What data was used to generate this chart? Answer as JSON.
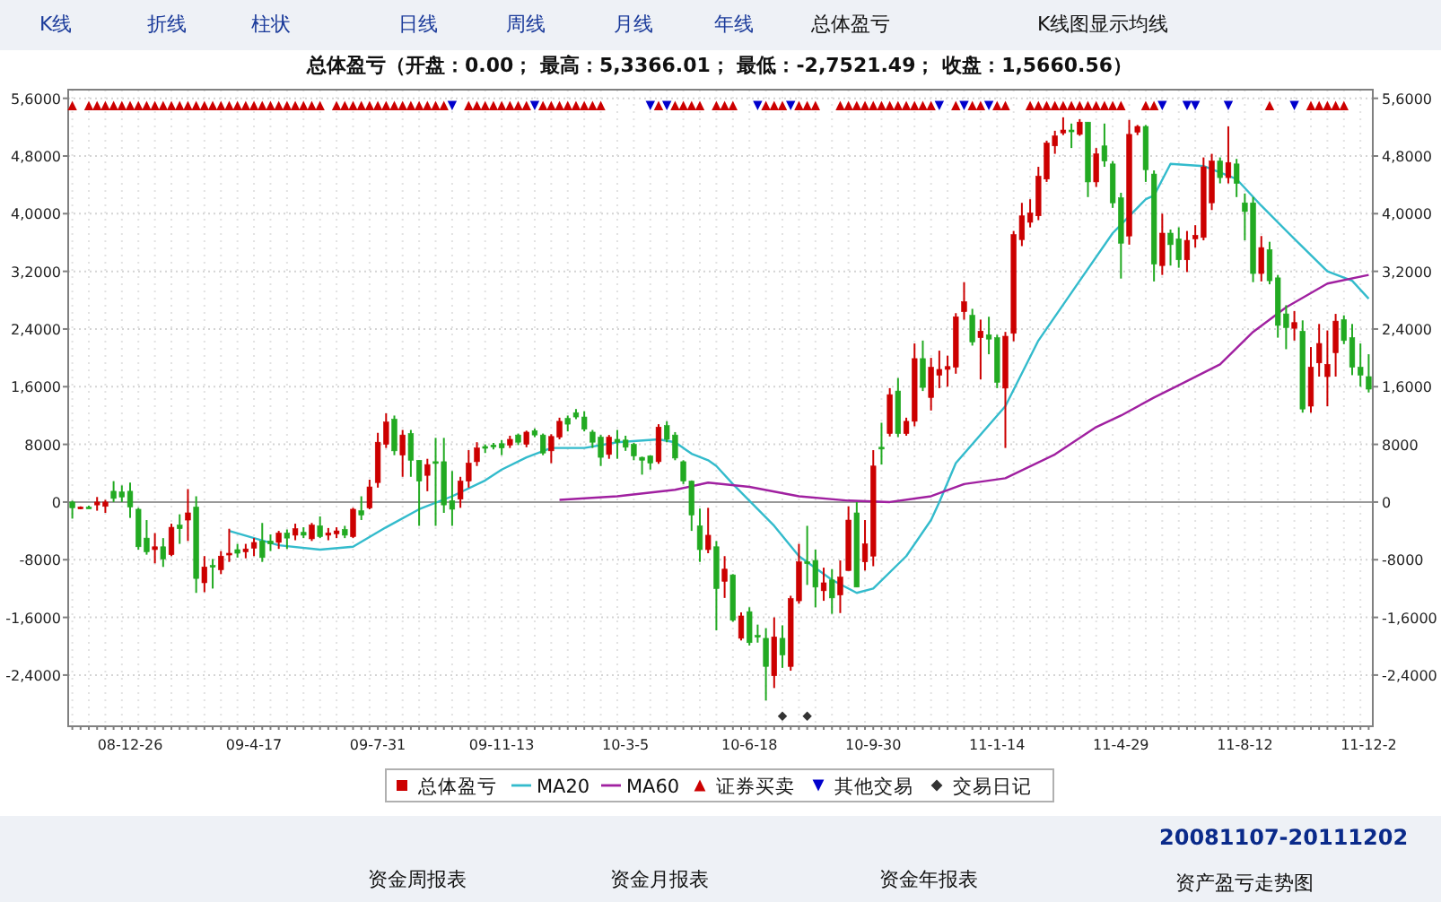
{
  "chart_data": {
    "type": "candlestick",
    "title": "总体盈亏（开盘：0.00；  最高：5,3366.01；  最低：-2,7521.49；  收盘：1,5660.56）",
    "categories": [
      null,
      null,
      null,
      null,
      null,
      null,
      null,
      "08-12-26",
      null,
      null,
      null,
      null,
      null,
      null,
      null,
      null,
      null,
      null,
      null,
      null,
      null,
      null,
      "09-4-17",
      null,
      null,
      null,
      null,
      null,
      null,
      null,
      null,
      null,
      null,
      null,
      null,
      null,
      null,
      "09-7-31",
      null,
      null,
      null,
      null,
      null,
      null,
      null,
      null,
      null,
      null,
      null,
      null,
      null,
      null,
      "09-11-13",
      null,
      null,
      null,
      null,
      null,
      null,
      null,
      null,
      null,
      null,
      null,
      null,
      null,
      null,
      "10-3-5",
      null,
      null,
      null,
      null,
      null,
      null,
      null,
      null,
      null,
      null,
      null,
      null,
      null,
      null,
      "10-6-18",
      null,
      null,
      null,
      null,
      null,
      null,
      null,
      null,
      null,
      null,
      null,
      null,
      null,
      null,
      "10-9-30",
      null,
      null,
      null,
      null,
      null,
      null,
      null,
      null,
      null,
      null,
      null,
      null,
      null,
      null,
      "11-1-14",
      null,
      null,
      null,
      null,
      null,
      null,
      null,
      null,
      null,
      null,
      null,
      null,
      null,
      null,
      "11-4-29",
      null,
      null,
      null,
      null,
      null,
      null,
      null,
      null,
      null,
      null,
      null,
      null,
      null,
      null,
      "11-8-12",
      null,
      null,
      null,
      null,
      null,
      null,
      null,
      null,
      null,
      null,
      null,
      null,
      null,
      null,
      "11-12-2"
    ],
    "series": [
      {
        "name": "总体盈亏",
        "type": "candlestick",
        "color": "#cc0000",
        "ohlc": [
          [
            0,
            200,
            -2300,
            -800
          ],
          [
            -800,
            -600,
            -1000,
            -700
          ],
          [
            -700,
            -500,
            -900,
            -800
          ],
          [
            -400,
            700,
            -1200,
            0
          ],
          [
            -600,
            300,
            -1500,
            0
          ],
          [
            1500,
            2900,
            0,
            500
          ],
          [
            1400,
            2300,
            0,
            700
          ],
          [
            1500,
            2700,
            -2200,
            -700
          ],
          [
            -1000,
            -800,
            -6600,
            -6200
          ],
          [
            -5000,
            -2500,
            -7300,
            -6900
          ],
          [
            -6600,
            -4300,
            -8500,
            -6200
          ],
          [
            -6200,
            -5000,
            -9000,
            -7900
          ],
          [
            -7300,
            -3000,
            -7500,
            -3500
          ],
          [
            -3200,
            -1700,
            -5800,
            -3700
          ],
          [
            -2500,
            1800,
            -5400,
            -1500
          ],
          [
            -700,
            800,
            -12600,
            -10600
          ],
          [
            -11200,
            -7500,
            -12500,
            -9000
          ],
          [
            -8800,
            -7900,
            -12000,
            -9000
          ],
          [
            -9400,
            -6800,
            -10000,
            -7500
          ],
          [
            -7300,
            -3700,
            -8300,
            -7100
          ],
          [
            -6600,
            -5800,
            -7700,
            -7100
          ],
          [
            -6900,
            -5800,
            -7800,
            -6500
          ],
          [
            -6400,
            -5000,
            -7500,
            -5600
          ],
          [
            -5400,
            -2900,
            -8300,
            -7700
          ],
          [
            -5400,
            -4500,
            -6800,
            -5800
          ],
          [
            -5600,
            -4000,
            -6500,
            -4300
          ],
          [
            -4300,
            -3800,
            -6500,
            -5000
          ],
          [
            -4600,
            -3000,
            -5300,
            -3700
          ],
          [
            -4200,
            -3500,
            -5000,
            -4600
          ],
          [
            -5100,
            -2900,
            -5400,
            -3200
          ],
          [
            -3300,
            -2000,
            -5000,
            -4800
          ],
          [
            -4600,
            -3600,
            -5300,
            -4300
          ],
          [
            -4400,
            -3500,
            -5000,
            -4000
          ],
          [
            -3800,
            -3300,
            -5000,
            -4600
          ],
          [
            -4800,
            -800,
            -5000,
            -1000
          ],
          [
            -1200,
            800,
            -2500,
            -1800
          ],
          [
            -800,
            3100,
            -1000,
            2100
          ],
          [
            2700,
            9600,
            2000,
            8300
          ],
          [
            8000,
            12300,
            7500,
            11100
          ],
          [
            11500,
            12000,
            6500,
            7100
          ],
          [
            6500,
            10000,
            3500,
            9300
          ],
          [
            9500,
            10000,
            3500,
            5800
          ],
          [
            5800,
            5800,
            -3300,
            2900
          ],
          [
            3700,
            6000,
            1500,
            5200
          ],
          [
            5600,
            8900,
            -3300,
            5400
          ],
          [
            5600,
            8900,
            -1500,
            -400
          ],
          [
            200,
            4300,
            -3300,
            -1000
          ],
          [
            400,
            3500,
            -800,
            2900
          ],
          [
            2900,
            7200,
            2000,
            5400
          ],
          [
            5600,
            8300,
            5000,
            7500
          ],
          [
            7700,
            8000,
            6800,
            7500
          ],
          [
            7900,
            8200,
            7300,
            7800
          ],
          [
            8100,
            8600,
            6500,
            7500
          ],
          [
            7900,
            9200,
            7500,
            8700
          ],
          [
            9300,
            9500,
            7900,
            8300
          ],
          [
            8000,
            9900,
            7600,
            9700
          ],
          [
            9900,
            10200,
            9000,
            9300
          ],
          [
            9300,
            9500,
            6500,
            6800
          ],
          [
            7100,
            9400,
            5400,
            9100
          ],
          [
            9000,
            11700,
            8700,
            11200
          ],
          [
            11600,
            12000,
            9800,
            10800
          ],
          [
            12400,
            12900,
            11500,
            11800
          ],
          [
            11800,
            12600,
            9800,
            10100
          ],
          [
            9700,
            10000,
            7500,
            8300
          ],
          [
            9000,
            9300,
            5000,
            6200
          ],
          [
            6600,
            9300,
            6000,
            9000
          ],
          [
            8700,
            10000,
            6000,
            8300
          ],
          [
            8600,
            9200,
            7100,
            7600
          ],
          [
            8000,
            8200,
            5800,
            6400
          ],
          [
            6200,
            6300,
            3800,
            5800
          ],
          [
            6400,
            6500,
            4500,
            5400
          ],
          [
            5600,
            10800,
            5300,
            10400
          ],
          [
            10600,
            11200,
            8300,
            8700
          ],
          [
            9300,
            9700,
            5800,
            6100
          ],
          [
            5600,
            5800,
            2500,
            2900
          ],
          [
            2900,
            3000,
            -4000,
            -1800
          ],
          [
            -3300,
            -900,
            -8300,
            -6600
          ],
          [
            -6600,
            -800,
            -7100,
            -4600
          ],
          [
            -6200,
            -5400,
            -17800,
            -12000
          ],
          [
            -11000,
            -7500,
            -13300,
            -9300
          ],
          [
            -10100,
            -10000,
            -16600,
            -16400
          ],
          [
            -18900,
            -15300,
            -19200,
            -15800
          ],
          [
            -15200,
            -14600,
            -19900,
            -19500
          ],
          [
            -18500,
            -17000,
            -19500,
            -18700
          ],
          [
            -18900,
            -17500,
            -27521.49,
            -22800
          ],
          [
            -24100,
            -16000,
            -25800,
            -18700
          ],
          [
            -18900,
            -17100,
            -23000,
            -21200
          ],
          [
            -22800,
            -13000,
            -23400,
            -13400
          ],
          [
            -13700,
            -5800,
            -14100,
            -8300
          ],
          [
            -8300,
            -3300,
            -11500,
            -8500
          ],
          [
            -8100,
            -6600,
            -14600,
            -11800
          ],
          [
            -12300,
            -9100,
            -13700,
            -11200
          ],
          [
            -10800,
            -9300,
            -15500,
            -13300
          ],
          [
            -12900,
            -8100,
            -15400,
            -10400
          ],
          [
            -9500,
            -600,
            -9500,
            -2500
          ],
          [
            -1500,
            0,
            -11800,
            -11800
          ],
          [
            -8300,
            -2500,
            -9500,
            -5800
          ],
          [
            -7500,
            7200,
            -8900,
            5000
          ],
          [
            7600,
            11000,
            5200,
            7500
          ],
          [
            9500,
            15800,
            9100,
            14900
          ],
          [
            15400,
            17200,
            9000,
            9500
          ],
          [
            9500,
            11700,
            9200,
            11200
          ],
          [
            11200,
            22000,
            10500,
            19900
          ],
          [
            19900,
            22400,
            15400,
            15900
          ],
          [
            14500,
            20000,
            12700,
            18700
          ],
          [
            17600,
            21000,
            15800,
            18400
          ],
          [
            18400,
            20300,
            16000,
            18800
          ],
          [
            18700,
            26200,
            17800,
            25700
          ],
          [
            26400,
            30500,
            25300,
            27800
          ],
          [
            25900,
            26800,
            21700,
            22200
          ],
          [
            22800,
            25300,
            17000,
            23700
          ],
          [
            23200,
            25700,
            20500,
            22600
          ],
          [
            22800,
            23200,
            15800,
            16600
          ],
          [
            15800,
            23600,
            7500,
            23000
          ],
          [
            23400,
            37600,
            22300,
            37100
          ],
          [
            36400,
            41500,
            35500,
            39700
          ],
          [
            38800,
            42000,
            38100,
            40100
          ],
          [
            39700,
            46500,
            39100,
            45200
          ],
          [
            44800,
            50100,
            44400,
            49800
          ],
          [
            49400,
            51500,
            48300,
            50800
          ],
          [
            51200,
            53366.01,
            50900,
            51600
          ],
          [
            51600,
            52500,
            49100,
            51400
          ],
          [
            51000,
            53100,
            50800,
            52700
          ],
          [
            52700,
            52700,
            42300,
            44400
          ],
          [
            44400,
            49100,
            43700,
            48300
          ],
          [
            49400,
            52500,
            46500,
            47300
          ],
          [
            46900,
            47300,
            40800,
            41500
          ],
          [
            42200,
            42900,
            31000,
            35900
          ],
          [
            36900,
            53000,
            35700,
            51000
          ],
          [
            51300,
            52300,
            50900,
            52100
          ],
          [
            52100,
            52300,
            44400,
            46100
          ],
          [
            45500,
            46000,
            30600,
            33000
          ],
          [
            32800,
            40000,
            31500,
            37300
          ],
          [
            37300,
            37800,
            32800,
            35700
          ],
          [
            36500,
            38100,
            32500,
            33600
          ],
          [
            33600,
            37600,
            31900,
            36300
          ],
          [
            36500,
            38400,
            35300,
            37000
          ],
          [
            36700,
            47800,
            36300,
            46500
          ],
          [
            41500,
            48300,
            40500,
            47300
          ],
          [
            47300,
            47800,
            44200,
            45000
          ],
          [
            45000,
            52100,
            44200,
            47100
          ],
          [
            46900,
            47600,
            42300,
            44200
          ],
          [
            41500,
            42800,
            36300,
            40300
          ],
          [
            41500,
            42300,
            30500,
            31700
          ],
          [
            31700,
            36900,
            30600,
            35300
          ],
          [
            35000,
            36100,
            30200,
            30700
          ],
          [
            31100,
            31500,
            22800,
            24500
          ],
          [
            26100,
            27300,
            21200,
            24200
          ],
          [
            24100,
            26500,
            22400,
            24900
          ],
          [
            23700,
            25200,
            12400,
            12900
          ],
          [
            13300,
            21500,
            12400,
            18700
          ],
          [
            19300,
            24700,
            17400,
            22000
          ],
          [
            17400,
            23800,
            13300,
            19100
          ],
          [
            20700,
            26100,
            17400,
            25100
          ],
          [
            25300,
            25900,
            21900,
            22400
          ],
          [
            22800,
            24700,
            17600,
            18700
          ],
          [
            18700,
            22000,
            16000,
            17600
          ],
          [
            17400,
            20500,
            15200,
            15660.56
          ]
        ],
        "colors": [
          "#22aa22",
          "#cc0000",
          "#22aa22",
          "#cc0000",
          "#cc0000",
          "#22aa22",
          "#22aa22",
          "#22aa22",
          "#22aa22",
          "#22aa22",
          "#cc0000",
          "#22aa22",
          "#cc0000",
          "#22aa22",
          "#cc0000",
          "#22aa22",
          "#cc0000",
          "#22aa22",
          "#cc0000",
          "#cc0000",
          "#22aa22",
          "#cc0000",
          "#cc0000",
          "#22aa22",
          "#22aa22",
          "#cc0000",
          "#22aa22",
          "#cc0000",
          "#22aa22",
          "#cc0000",
          "#22aa22",
          "#cc0000",
          "#cc0000",
          "#22aa22",
          "#cc0000",
          "#22aa22",
          "#cc0000",
          "#cc0000",
          "#cc0000",
          "#22aa22",
          "#cc0000",
          "#22aa22",
          "#22aa22",
          "#cc0000",
          "#22aa22",
          "#22aa22",
          "#22aa22",
          "#cc0000",
          "#cc0000",
          "#cc0000",
          "#22aa22",
          "#22aa22",
          "#22aa22",
          "#cc0000",
          "#22aa22",
          "#cc0000",
          "#22aa22",
          "#22aa22",
          "#cc0000",
          "#cc0000",
          "#22aa22",
          "#22aa22",
          "#22aa22",
          "#22aa22",
          "#22aa22",
          "#cc0000",
          "#22aa22",
          "#22aa22",
          "#22aa22",
          "#22aa22",
          "#22aa22",
          "#cc0000",
          "#22aa22",
          "#22aa22",
          "#22aa22",
          "#22aa22",
          "#22aa22",
          "#cc0000",
          "#22aa22",
          "#cc0000",
          "#22aa22",
          "#cc0000",
          "#22aa22",
          "#22aa22",
          "#22aa22",
          "#cc0000",
          "#22aa22",
          "#cc0000",
          "#cc0000",
          "#22aa22",
          "#22aa22",
          "#cc0000",
          "#22aa22",
          "#cc0000",
          "#cc0000",
          "#22aa22",
          "#cc0000",
          "#cc0000",
          "#22aa22",
          "#cc0000",
          "#22aa22",
          "#cc0000",
          "#cc0000",
          "#22aa22",
          "#cc0000",
          "#cc0000",
          "#cc0000",
          "#cc0000",
          "#cc0000",
          "#22aa22",
          "#cc0000",
          "#22aa22",
          "#22aa22",
          "#cc0000",
          "#cc0000",
          "#cc0000",
          "#cc0000",
          "#cc0000",
          "#cc0000",
          "#cc0000",
          "#cc0000",
          "#22aa22",
          "#cc0000",
          "#22aa22",
          "#cc0000",
          "#22aa22",
          "#22aa22",
          "#22aa22",
          "#cc0000",
          "#cc0000",
          "#22aa22",
          "#22aa22",
          "#cc0000",
          "#22aa22",
          "#22aa22",
          "#cc0000",
          "#cc0000",
          "#cc0000",
          "#cc0000",
          "#22aa22",
          "#cc0000",
          "#22aa22",
          "#22aa22",
          "#22aa22",
          "#cc0000",
          "#22aa22",
          "#22aa22",
          "#22aa22",
          "#cc0000",
          "#22aa22",
          "#cc0000",
          "#cc0000",
          "#cc0000",
          "#cc0000",
          "#22aa22",
          "#22aa22",
          "#22aa22",
          "#22aa22"
        ]
      },
      {
        "name": "MA20",
        "type": "line",
        "color": "#33bbcc",
        "values": [
          null,
          null,
          null,
          null,
          null,
          null,
          null,
          null,
          null,
          null,
          null,
          null,
          null,
          null,
          null,
          null,
          null,
          null,
          null,
          -4000,
          null,
          null,
          null,
          null,
          null,
          -6000,
          null,
          null,
          null,
          null,
          -6600,
          null,
          null,
          null,
          -6200,
          null,
          null,
          null,
          -3500,
          null,
          null,
          null,
          -1000,
          null,
          null,
          null,
          800,
          null,
          null,
          null,
          3000,
          null,
          4500,
          null,
          null,
          6200,
          null,
          null,
          7500,
          null,
          null,
          null,
          7500,
          null,
          null,
          null,
          8300,
          null,
          null,
          null,
          null,
          8700,
          null,
          8300,
          null,
          6700,
          null,
          5800,
          5000,
          null,
          2500,
          null,
          null,
          null,
          null,
          -3300,
          null,
          null,
          -7500,
          null,
          null,
          null,
          -10800,
          null,
          null,
          -12600,
          null,
          -12000,
          null,
          null,
          null,
          -7500,
          null,
          null,
          -2500,
          0,
          null,
          5400,
          null,
          null,
          null,
          null,
          null,
          13300,
          null,
          null,
          null,
          22400,
          null,
          null,
          null,
          null,
          30700,
          null,
          null,
          null,
          37300,
          null,
          null,
          null,
          42000,
          42500,
          null,
          46900,
          null,
          null,
          null,
          46600,
          null,
          null,
          null,
          44800,
          null,
          null,
          41100,
          null,
          null,
          null,
          36500,
          null,
          null,
          null,
          32000,
          null,
          null,
          30700,
          null,
          28200
        ]
      },
      {
        "name": "MA60",
        "type": "line",
        "color": "#a020a0",
        "values": [
          null,
          null,
          null,
          null,
          null,
          null,
          null,
          null,
          null,
          null,
          null,
          null,
          null,
          null,
          null,
          null,
          null,
          null,
          null,
          null,
          null,
          null,
          null,
          null,
          null,
          null,
          null,
          null,
          null,
          null,
          null,
          null,
          null,
          null,
          null,
          null,
          null,
          null,
          null,
          null,
          null,
          null,
          null,
          null,
          null,
          null,
          null,
          null,
          null,
          null,
          null,
          null,
          null,
          null,
          null,
          null,
          null,
          null,
          null,
          300,
          null,
          null,
          null,
          null,
          null,
          null,
          800,
          null,
          null,
          null,
          null,
          null,
          null,
          1700,
          null,
          null,
          null,
          2700,
          null,
          null,
          null,
          null,
          2100,
          null,
          null,
          null,
          null,
          null,
          800,
          null,
          null,
          null,
          null,
          null,
          200,
          null,
          null,
          null,
          null,
          0,
          null,
          null,
          null,
          null,
          800,
          null,
          null,
          null,
          2500,
          null,
          null,
          null,
          null,
          3300,
          null,
          null,
          null,
          null,
          null,
          6600,
          null,
          null,
          null,
          null,
          10400,
          null,
          null,
          12000,
          null,
          null,
          null,
          14500,
          null,
          null,
          16200,
          null,
          null,
          null,
          null,
          19100,
          null,
          null,
          null,
          23600,
          null,
          null,
          null,
          27000,
          null,
          null,
          null,
          null,
          30300,
          null,
          null,
          null,
          null,
          31500
        ]
      },
      {
        "name": "证券买卖",
        "type": "scatter",
        "marker": "triangle",
        "color": "#cc0000",
        "values": [
          55000,
          null,
          55000,
          55000,
          55000,
          55000,
          55000,
          55000,
          55000,
          55000,
          55000,
          55000,
          55000,
          55000,
          55000,
          55000,
          55000,
          55000,
          55000,
          55000,
          55000,
          55000,
          55000,
          55000,
          55000,
          55000,
          55000,
          55000,
          55000,
          55000,
          55000,
          null,
          55000,
          55000,
          55000,
          55000,
          55000,
          55000,
          55000,
          55000,
          55000,
          55000,
          55000,
          55000,
          55000,
          55000,
          null,
          null,
          55000,
          55000,
          55000,
          55000,
          55000,
          55000,
          55000,
          55000,
          null,
          55000,
          55000,
          55000,
          55000,
          55000,
          55000,
          55000,
          55000,
          null,
          null,
          null,
          null,
          null,
          null,
          55000,
          null,
          55000,
          55000,
          55000,
          55000,
          null,
          55000,
          55000,
          55000,
          null,
          null,
          null,
          55000,
          55000,
          55000,
          null,
          55000,
          55000,
          55000,
          null,
          null,
          55000,
          55000,
          55000,
          55000,
          55000,
          55000,
          55000,
          55000,
          55000,
          55000,
          55000,
          55000,
          null,
          null,
          55000,
          null,
          55000,
          55000,
          null,
          55000,
          55000,
          null,
          null,
          55000,
          55000,
          55000,
          55000,
          55000,
          55000,
          55000,
          55000,
          55000,
          55000,
          55000,
          55000,
          null,
          null,
          55000,
          55000,
          null,
          null,
          null,
          null,
          null,
          null,
          null,
          null,
          null,
          null,
          null,
          null,
          null,
          55000,
          null,
          null,
          null,
          null,
          55000,
          55000,
          55000,
          55000,
          55000,
          null,
          null,
          null
        ]
      },
      {
        "name": "其他交易",
        "type": "scatter",
        "marker": "triangle-down",
        "color": "#0000cc",
        "values": [
          null,
          null,
          null,
          null,
          null,
          null,
          null,
          null,
          null,
          null,
          null,
          null,
          null,
          null,
          null,
          null,
          null,
          null,
          null,
          null,
          null,
          null,
          null,
          null,
          null,
          null,
          null,
          null,
          null,
          null,
          null,
          null,
          null,
          null,
          null,
          null,
          null,
          null,
          null,
          null,
          null,
          null,
          null,
          null,
          null,
          null,
          55000,
          null,
          null,
          null,
          null,
          null,
          null,
          null,
          null,
          null,
          55000,
          null,
          null,
          null,
          null,
          null,
          null,
          null,
          null,
          null,
          null,
          null,
          null,
          null,
          55000,
          null,
          55000,
          null,
          null,
          null,
          null,
          null,
          null,
          null,
          null,
          null,
          null,
          55000,
          null,
          null,
          null,
          55000,
          null,
          null,
          null,
          null,
          null,
          null,
          null,
          null,
          null,
          null,
          null,
          null,
          null,
          null,
          null,
          null,
          null,
          55000,
          null,
          null,
          55000,
          null,
          null,
          55000,
          null,
          null,
          null,
          null,
          null,
          null,
          null,
          null,
          null,
          null,
          null,
          null,
          null,
          null,
          null,
          null,
          null,
          null,
          null,
          null,
          55000,
          null,
          null,
          55000,
          55000,
          null,
          null,
          null,
          55000,
          null,
          null,
          null,
          null,
          null,
          null,
          null,
          55000,
          null,
          null,
          null,
          null,
          null,
          null,
          null,
          null,
          null
        ]
      },
      {
        "name": "交易日记",
        "type": "scatter",
        "marker": "diamond",
        "color": "#333333",
        "values": [
          null,
          null,
          null,
          null,
          null,
          null,
          null,
          null,
          null,
          null,
          null,
          null,
          null,
          null,
          null,
          null,
          null,
          null,
          null,
          null,
          null,
          null,
          null,
          null,
          null,
          null,
          null,
          null,
          null,
          null,
          null,
          null,
          null,
          null,
          null,
          null,
          null,
          null,
          null,
          null,
          null,
          null,
          null,
          null,
          null,
          null,
          null,
          null,
          null,
          null,
          null,
          null,
          null,
          null,
          null,
          null,
          null,
          null,
          null,
          null,
          null,
          null,
          null,
          null,
          null,
          null,
          null,
          null,
          null,
          null,
          null,
          null,
          null,
          null,
          null,
          null,
          null,
          null,
          null,
          null,
          null,
          null,
          null,
          null,
          null,
          null,
          -29700,
          null,
          null,
          -29700,
          null,
          null,
          null,
          null,
          null,
          null,
          null,
          null,
          null,
          null,
          null,
          null,
          null,
          null,
          null,
          null,
          null,
          null,
          null,
          null,
          null,
          null,
          null,
          null,
          null,
          null,
          null,
          null,
          null,
          null,
          null,
          null,
          null,
          null,
          null,
          null,
          null,
          null,
          null,
          null,
          null,
          null,
          null,
          null,
          null,
          null,
          null,
          null,
          null,
          null,
          null,
          null,
          null,
          null,
          null,
          null,
          null,
          null,
          null,
          null,
          null,
          null,
          null,
          null,
          null,
          null,
          null,
          null
        ]
      }
    ],
    "ylim": [
      -31100,
      57200
    ],
    "yticks": [
      {
        "value": 56000,
        "label": "5,6000"
      },
      {
        "value": 48000,
        "label": "4,8000"
      },
      {
        "value": 40000,
        "label": "4,0000"
      },
      {
        "value": 32000,
        "label": "3,2000"
      },
      {
        "value": 24000,
        "label": "2,4000"
      },
      {
        "value": 16000,
        "label": "1,6000"
      },
      8000,
      0,
      -8000,
      {
        "value": -16000,
        "label": "-1,6000"
      },
      {
        "value": -24000,
        "label": "-2,4000"
      }
    ],
    "y2lim": [
      -31100,
      57200
    ],
    "y2ticks": [
      {
        "value": 56000,
        "label": "5,6000"
      },
      {
        "value": 48000,
        "label": "4,8000"
      },
      {
        "value": 40000,
        "label": "4,0000"
      },
      {
        "value": 32000,
        "label": "3,2000"
      },
      {
        "value": 24000,
        "label": "2,4000"
      },
      {
        "value": 16000,
        "label": "1,6000"
      },
      8000,
      0,
      -8000,
      {
        "value": -16000,
        "label": "-1,6000"
      },
      {
        "value": -24000,
        "label": "-2,4000"
      }
    ],
    "ref_lines": [
      {
        "axis": "y",
        "value": 0,
        "color": "#999999"
      }
    ],
    "grid": true,
    "legend": "bottom",
    "annotations": [
      "K线",
      "折线",
      "柱状",
      "日线",
      "周线",
      "月线",
      "年线",
      "总体盈亏",
      "K线图显示均线",
      "20081107-20111202",
      "资金周报表",
      "资金月报表",
      "资金年报表",
      "资产盈亏走势图"
    ]
  }
}
